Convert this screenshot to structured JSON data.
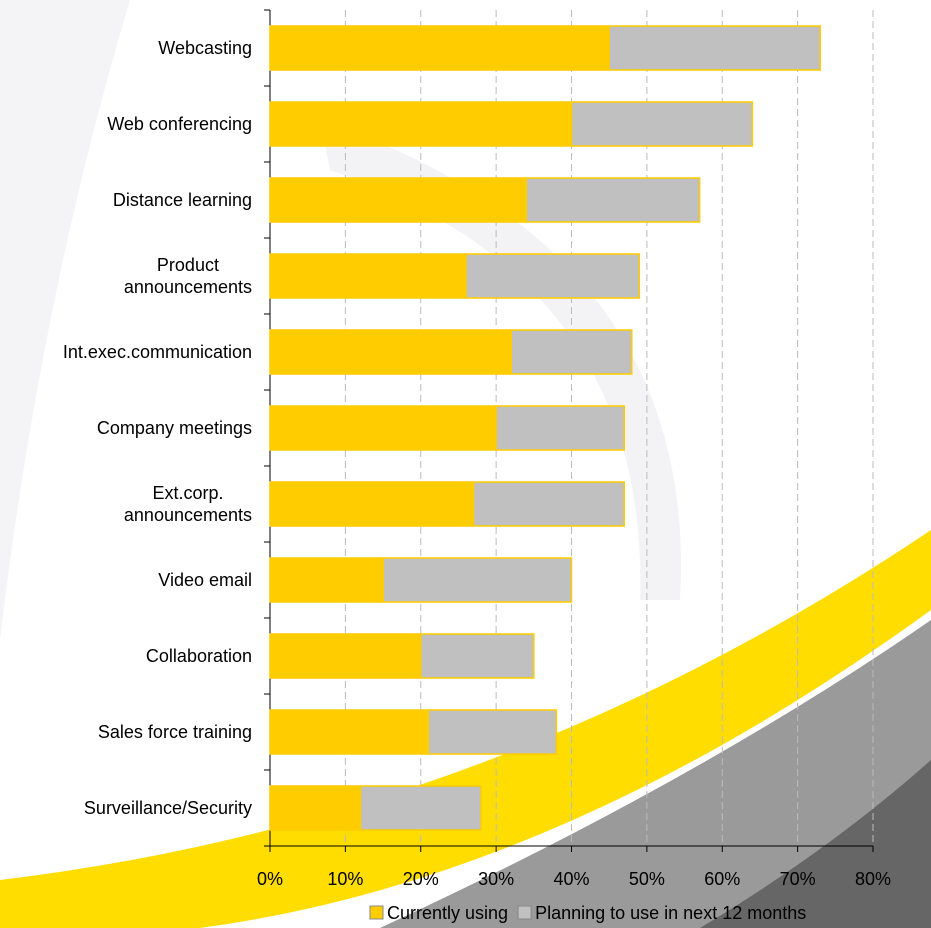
{
  "chart_data": {
    "type": "stacked-bar-horizontal",
    "categories": [
      "Webcasting",
      "Web conferencing",
      "Distance learning",
      "Product\nannouncements",
      "Int.exec.communication",
      "Company meetings",
      "Ext.corp.\nannouncements",
      "Video email",
      "Collaboration",
      "Sales force training",
      "Surveillance/Security"
    ],
    "series": [
      {
        "name": "Currently using",
        "color": "#ffcc00",
        "values": [
          45,
          40,
          34,
          26,
          32,
          30,
          27,
          15,
          20,
          21,
          12
        ]
      },
      {
        "name": "Planning to use in next 12 months",
        "color": "#c0c0c0",
        "values": [
          28,
          24,
          23,
          23,
          16,
          17,
          20,
          25,
          15,
          17,
          16
        ]
      }
    ],
    "xlim": [
      0,
      80
    ],
    "xticks": [
      {
        "value": 0,
        "label": "0%"
      },
      {
        "value": 10,
        "label": "10%"
      },
      {
        "value": 20,
        "label": "20%"
      },
      {
        "value": 30,
        "label": "30%"
      },
      {
        "value": 40,
        "label": "40%"
      },
      {
        "value": 50,
        "label": "50%"
      },
      {
        "value": 60,
        "label": "60%"
      },
      {
        "value": 70,
        "label": "70%"
      },
      {
        "value": 80,
        "label": "80%"
      }
    ],
    "grid": true
  }
}
